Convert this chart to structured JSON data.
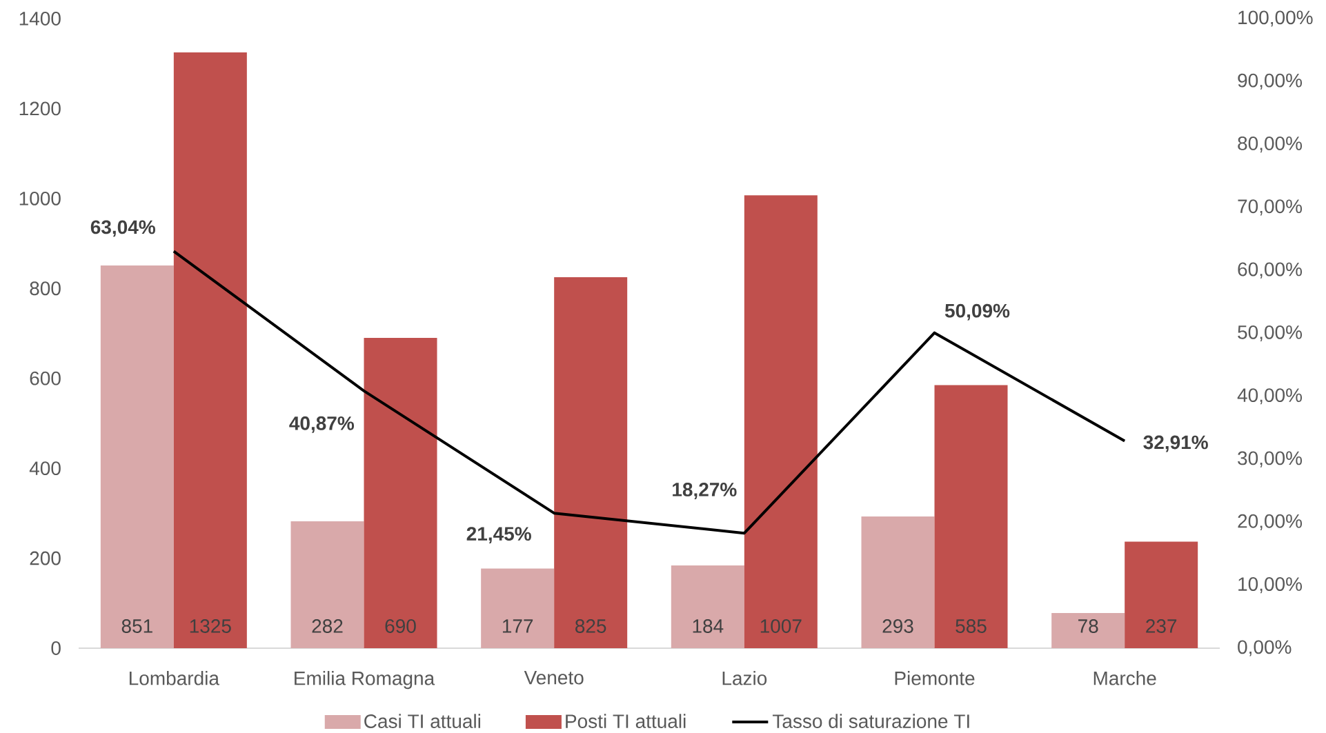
{
  "chart_data": {
    "type": "bar",
    "categories": [
      "Lombardia",
      "Emilia Romagna",
      "Veneto",
      "Lazio",
      "Piemonte",
      "Marche"
    ],
    "series": [
      {
        "name": "Casi TI attuali",
        "color": "#d9a9aa",
        "values": [
          851,
          282,
          177,
          184,
          293,
          78
        ],
        "value_labels": [
          "851",
          "282",
          "177",
          "184",
          "293",
          "78"
        ]
      },
      {
        "name": "Posti TI attuali",
        "color": "#c0504d",
        "values": [
          1325,
          690,
          825,
          1007,
          585,
          237
        ],
        "value_labels": [
          "1325",
          "690",
          "825",
          "1007",
          "585",
          "237"
        ]
      },
      {
        "name": "Tasso di saturazione TI",
        "type": "line",
        "axis": "y2",
        "color": "#000000",
        "values": [
          63.04,
          40.87,
          21.45,
          18.27,
          50.09,
          32.91
        ],
        "value_labels": [
          "63,04%",
          "40,87%",
          "21,45%",
          "18,27%",
          "50,09%",
          "32,91%"
        ]
      }
    ],
    "ylim": [
      0,
      1400
    ],
    "yticks": [
      0,
      200,
      400,
      600,
      800,
      1000,
      1200,
      1400
    ],
    "y2lim": [
      0,
      100
    ],
    "y2ticks": [
      {
        "value": 0,
        "label": "0,00%"
      },
      {
        "value": 10,
        "label": "10,00%"
      },
      {
        "value": 20,
        "label": "20,00%"
      },
      {
        "value": 30,
        "label": "30,00%"
      },
      {
        "value": 40,
        "label": "40,00%"
      },
      {
        "value": 50,
        "label": "50,00%"
      },
      {
        "value": 60,
        "label": "60,00%"
      },
      {
        "value": 70,
        "label": "70,00%"
      },
      {
        "value": 80,
        "label": "80,00%"
      },
      {
        "value": 90,
        "label": "90,00%"
      },
      {
        "value": 100,
        "label": "100,00%"
      }
    ],
    "legend": "bottom"
  }
}
